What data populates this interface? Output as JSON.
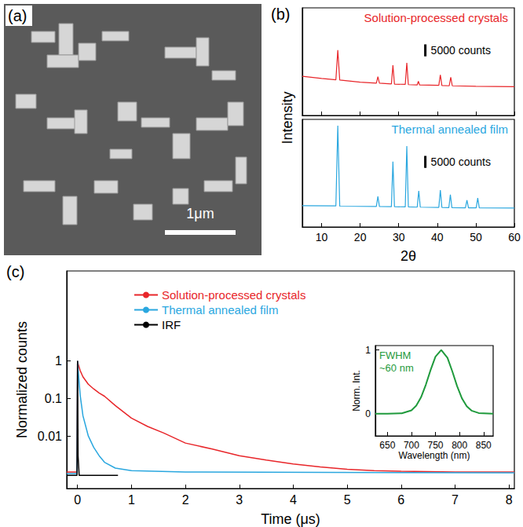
{
  "sem_image": {
    "panel": "(a)",
    "scale_bar": "1μm"
  },
  "chart_data": [
    {
      "type": "line",
      "panel": "(b)",
      "xlabel": "2θ",
      "ylabel": "Intensity",
      "xlim": [
        5,
        60
      ],
      "xticks": [
        10,
        20,
        30,
        40,
        50,
        60
      ],
      "ylim": [
        0,
        45000
      ],
      "tick_labels": "x",
      "grid": false,
      "scale_bar": {
        "value": 5000,
        "label": "5000 counts"
      },
      "series": [
        {
          "name": "Solution-processed crystals",
          "color": "#e8262a",
          "x": [
            5,
            10,
            13.7,
            14.2,
            14.7,
            20,
            24.2,
            24.6,
            25,
            28.1,
            28.5,
            28.9,
            31.7,
            32.1,
            32.5,
            34.8,
            35.1,
            35.4,
            40.4,
            40.8,
            41.2,
            43.1,
            43.5,
            43.9,
            50,
            60
          ],
          "values": [
            16400,
            15500,
            14900,
            27300,
            14800,
            13900,
            13500,
            16200,
            13500,
            13200,
            21000,
            13100,
            13000,
            22000,
            12900,
            12800,
            14300,
            12800,
            12600,
            17000,
            12500,
            12400,
            16000,
            12400,
            12200,
            12000
          ]
        },
        {
          "name": "Thermal annealed film",
          "color": "#2aa7df",
          "x": [
            5,
            13.7,
            14.2,
            14.7,
            24.2,
            24.6,
            25,
            28.1,
            28.5,
            28.9,
            31.7,
            32.1,
            32.5,
            34.8,
            35.2,
            35.6,
            40.4,
            40.8,
            41.2,
            43,
            43.4,
            43.8,
            47.3,
            47.7,
            48.1,
            50.1,
            50.5,
            50.9,
            60
          ],
          "values": [
            8900,
            8800,
            42400,
            8700,
            8600,
            12800,
            8600,
            8500,
            27300,
            8500,
            8400,
            33800,
            8400,
            8300,
            15100,
            8300,
            8200,
            15400,
            8200,
            8100,
            13500,
            8100,
            8000,
            11200,
            8000,
            8000,
            12100,
            8000,
            7900
          ]
        }
      ]
    },
    {
      "type": "line",
      "panel": "(c)",
      "xlabel": "Time (μs)",
      "ylabel": "Normalized counts",
      "log": "y",
      "xlim": [
        -0.2,
        8.1
      ],
      "xticks": [
        0,
        1,
        2,
        3,
        4,
        5,
        6,
        7,
        8
      ],
      "ylim": [
        0.0004,
        250
      ],
      "yticks": [
        0.01,
        0.1,
        1
      ],
      "grid": false,
      "legend": "upper left",
      "series": [
        {
          "name": "Solution-processed crystals",
          "color": "#e8262a",
          "x": [
            -0.2,
            -0.01,
            0,
            0.02,
            0.05,
            0.1,
            0.2,
            0.3,
            0.4,
            0.5,
            0.7,
            1,
            1.3,
            1.6,
            2,
            2.5,
            3,
            3.5,
            4,
            4.5,
            5,
            5.5,
            6,
            7,
            8.1
          ],
          "values": [
            0.0011,
            0.0011,
            1,
            0.75,
            0.55,
            0.38,
            0.24,
            0.18,
            0.14,
            0.115,
            0.065,
            0.03,
            0.018,
            0.012,
            0.0065,
            0.0045,
            0.003,
            0.0023,
            0.0018,
            0.0015,
            0.0013,
            0.0012,
            0.00115,
            0.0011,
            0.0011
          ]
        },
        {
          "name": "Thermal annealed film",
          "color": "#2aa7df",
          "x": [
            -0.2,
            -0.01,
            0,
            0.02,
            0.05,
            0.1,
            0.2,
            0.3,
            0.4,
            0.5,
            0.7,
            1,
            2,
            8.1
          ],
          "values": [
            0.001,
            0.001,
            1,
            0.4,
            0.12,
            0.035,
            0.01,
            0.005,
            0.003,
            0.002,
            0.0014,
            0.0012,
            0.0011,
            0.00105
          ]
        },
        {
          "name": "IRF",
          "color": "#000000",
          "x": [
            -0.2,
            -0.01,
            0,
            0.01,
            0.03,
            0.75
          ],
          "values": [
            0.0009,
            0.0009,
            1,
            0.003,
            0.0009,
            0.0009
          ]
        }
      ]
    },
    {
      "type": "line",
      "xlabel": "Wavelength (nm)",
      "ylabel": "Norm. Int.",
      "xlim": [
        625,
        870
      ],
      "xticks": [
        650,
        700,
        750,
        800,
        850
      ],
      "ylim": [
        -0.35,
        1.07
      ],
      "yticks": [
        0,
        1
      ],
      "grid": false,
      "color": "#1f9a3c",
      "annotations": [
        "FWHM",
        "~60 nm"
      ],
      "x": [
        625,
        650,
        680,
        700,
        710,
        720,
        730,
        740,
        750,
        762,
        775,
        785,
        795,
        805,
        815,
        825,
        840,
        870
      ],
      "values": [
        0,
        0,
        0.006,
        0.052,
        0.125,
        0.257,
        0.455,
        0.689,
        0.895,
        1,
        0.878,
        0.666,
        0.433,
        0.241,
        0.115,
        0.047,
        0.009,
        0
      ]
    }
  ]
}
